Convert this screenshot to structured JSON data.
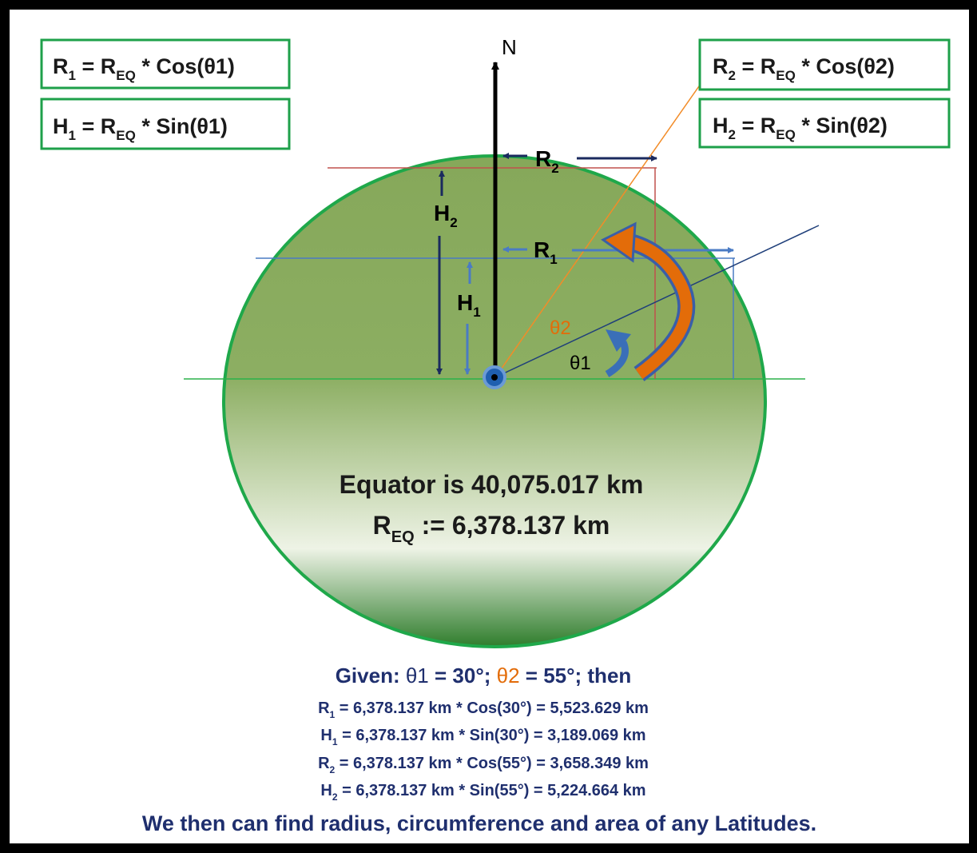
{
  "formulas": [
    [
      "R",
      "1",
      " = R",
      "EQ",
      " * Cos(θ1)"
    ],
    [
      "H",
      "1",
      " = R",
      "EQ",
      " * Sin(θ1)"
    ],
    [
      "R",
      "2",
      " = R",
      "EQ",
      " * Cos(θ2)"
    ],
    [
      "H",
      "2",
      " = R",
      "EQ",
      " * Sin(θ2)"
    ]
  ],
  "north": "N",
  "labels": {
    "r2": [
      "R",
      "2"
    ],
    "r1": [
      "R",
      "1"
    ],
    "h2": [
      "H",
      "2"
    ],
    "h1": [
      "H",
      "1"
    ],
    "theta2": "θ2",
    "theta1": "θ1"
  },
  "equator": "Equator is 40,075.017 km",
  "radius": [
    "R",
    "EQ",
    " := 6,378.137 km"
  ],
  "given": [
    "Given: ",
    "θ1",
    " = ",
    "30°",
    "; ",
    "θ2",
    " = ",
    "55°",
    "; then"
  ],
  "results": [
    [
      "R",
      "1",
      " = 6,378.137 km * Cos(30°) = 5,523.629 km"
    ],
    [
      "H",
      "1",
      " = 6,378.137 km * Sin(30°)  = 3,189.069 km"
    ],
    [
      "R",
      "2",
      " = 6,378.137 km * Cos(55°) = 3,658.349 km"
    ],
    [
      "H",
      "2",
      " = 6,378.137 km * Sin(55°)  = 5,224.664 km"
    ]
  ],
  "conclusion": "We then can find radius, circumference and area of any Latitudes."
}
